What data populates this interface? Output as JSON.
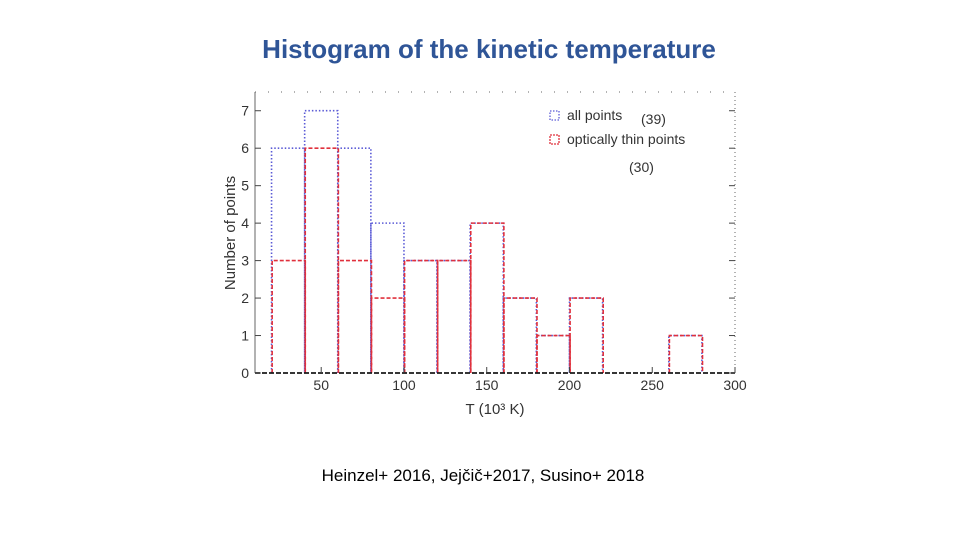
{
  "slide": {
    "title": "Histogram of the kinetic temperature",
    "caption": "Heinzel+ 2016, Jejčič+2017, Susino+ 2018"
  },
  "chart_data": {
    "type": "histogram",
    "xlabel": "T  (10³ K)",
    "ylabel": "Number  of  points",
    "xlim": [
      10,
      300
    ],
    "ylim": [
      0,
      7.5
    ],
    "xticks": [
      50,
      100,
      150,
      200,
      250,
      300
    ],
    "yticks": [
      0,
      1,
      2,
      3,
      4,
      5,
      6,
      7
    ],
    "grid": false,
    "legend_position": "top-right",
    "bin_edges": [
      20,
      40,
      60,
      80,
      100,
      120,
      140,
      160,
      180,
      200,
      220,
      240,
      260,
      280
    ],
    "series": [
      {
        "name": "all points",
        "count_label": "(39)",
        "color": "#5b5bd6",
        "line_style": "dotted",
        "values": [
          6,
          7,
          6,
          4,
          3,
          3,
          4,
          2,
          1,
          2,
          0,
          0,
          1
        ]
      },
      {
        "name": "optically thin points",
        "count_label": "(30)",
        "color": "#e0303c",
        "line_style": "dashed",
        "values": [
          3,
          6,
          3,
          2,
          3,
          3,
          4,
          2,
          1,
          2,
          0,
          0,
          1
        ]
      }
    ]
  }
}
